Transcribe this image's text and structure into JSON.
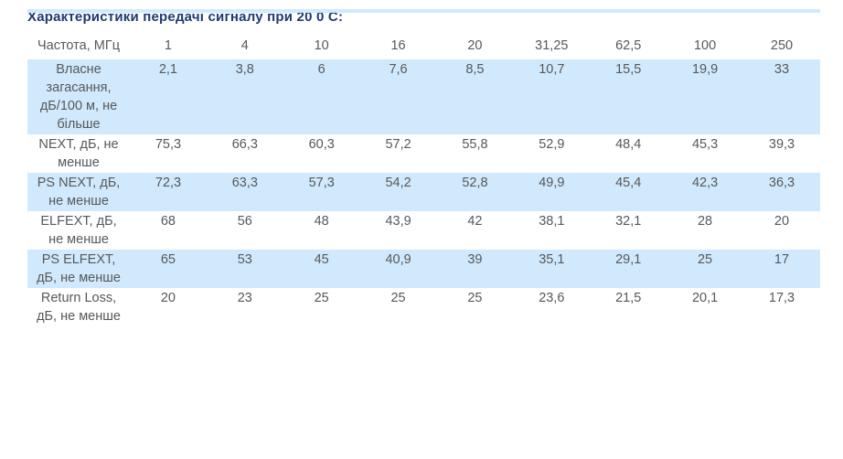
{
  "section": {
    "title": "Характеристики передачі сигналу при 20 0 С:"
  },
  "table": {
    "header": {
      "label": "Частота, МГц",
      "frequencies": [
        "1",
        "4",
        "10",
        "16",
        "20",
        "31,25",
        "62,5",
        "100",
        "250"
      ]
    },
    "rows": [
      {
        "label": "Власне загасання, дБ/100 м, не більше",
        "values": [
          "2,1",
          "3,8",
          "6",
          "7,6",
          "8,5",
          "10,7",
          "15,5",
          "19,9",
          "33"
        ],
        "highlight": true
      },
      {
        "label": "NEXT, дБ, не менше",
        "values": [
          "75,3",
          "66,3",
          "60,3",
          "57,2",
          "55,8",
          "52,9",
          "48,4",
          "45,3",
          "39,3"
        ],
        "highlight": false
      },
      {
        "label": "PS NEXT, дБ, не менше",
        "values": [
          "72,3",
          "63,3",
          "57,3",
          "54,2",
          "52,8",
          "49,9",
          "45,4",
          "42,3",
          "36,3"
        ],
        "highlight": true
      },
      {
        "label": "ELFEXT, дБ, не менше",
        "values": [
          "68",
          "56",
          "48",
          "43,9",
          "42",
          "38,1",
          "32,1",
          "28",
          "20"
        ],
        "highlight": false
      },
      {
        "label": "PS ELFEXT, дБ, не менше",
        "values": [
          "65",
          "53",
          "45",
          "40,9",
          "39",
          "35,1",
          "29,1",
          "25",
          "17"
        ],
        "highlight": true
      },
      {
        "label": "Return Loss, дБ, не менше",
        "values": [
          "20",
          "23",
          "25",
          "25",
          "25",
          "23,6",
          "21,5",
          "20,1",
          "17,3"
        ],
        "highlight": false
      }
    ]
  },
  "colors": {
    "highlight_row": "#d0e9fc",
    "title_text": "#1e3a72",
    "cell_text": "#57585a",
    "background": "#ffffff"
  }
}
